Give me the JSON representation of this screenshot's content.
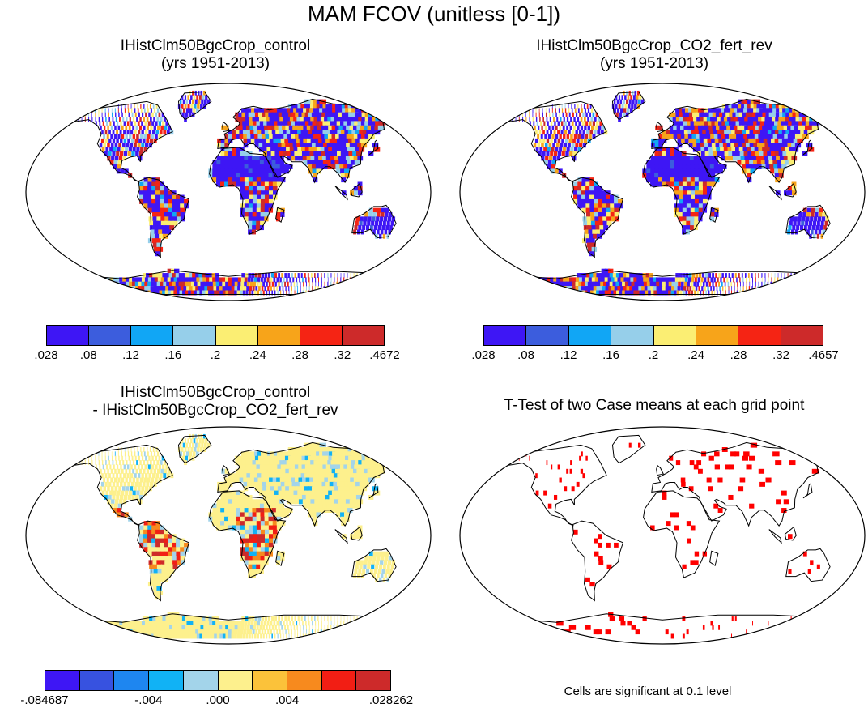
{
  "title": "MAM FCOV (unitless [0-1])",
  "panels": [
    {
      "id": "control",
      "title_line1": "IHistClm50BgcCrop_control",
      "title_line2": "(yrs 1951-2013)"
    },
    {
      "id": "co2",
      "title_line1": "IHistClm50BgcCrop_CO2_fert_rev",
      "title_line2": "(yrs 1951-2013)"
    },
    {
      "id": "diff",
      "title_line1": "IHistClm50BgcCrop_control",
      "title_line2": "- IHistClm50BgcCrop_CO2_fert_rev"
    },
    {
      "id": "ttest",
      "title_line1": "T-Test of two Case means at each grid point",
      "title_line2": ""
    }
  ],
  "colorbars": {
    "control": {
      "colors": [
        "#3e16f5",
        "#3c5ddd",
        "#11a6f5",
        "#96cfea",
        "#fbee73",
        "#f7a41a",
        "#f52414",
        "#cd2a2a"
      ],
      "labels": [
        ".028",
        ".08",
        ".12",
        ".16",
        ".2",
        ".24",
        ".28",
        ".32",
        ".4672"
      ]
    },
    "co2": {
      "colors": [
        "#3e16f5",
        "#3c5ddd",
        "#11a6f5",
        "#96cfea",
        "#fbee73",
        "#f7a41a",
        "#f52414",
        "#cd2a2a"
      ],
      "labels": [
        ".028",
        ".08",
        ".12",
        ".16",
        ".2",
        ".24",
        ".28",
        ".32",
        ".4657"
      ]
    },
    "diff": {
      "colors": [
        "#3e16f5",
        "#3752e0",
        "#1e86f0",
        "#11b2f5",
        "#a3d4ea",
        "#fdf08d",
        "#fbc23a",
        "#f78a1e",
        "#f21e14",
        "#cd2a2a"
      ],
      "labels": [
        "-.084687",
        "-.004",
        ".000",
        ".004",
        ".028262"
      ]
    }
  },
  "ttest_note": "Cells are significant at 0.1 level",
  "map_colors": {
    "ocean": "#ffffff",
    "coast": "#000000",
    "significant": "#ff0000"
  }
}
